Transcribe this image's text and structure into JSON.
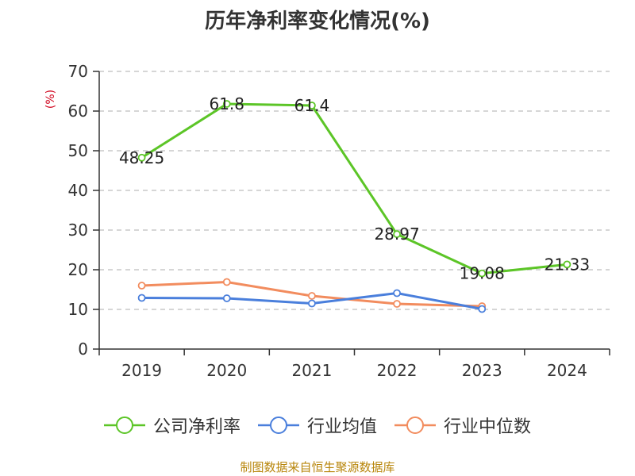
{
  "chart_data": {
    "type": "line",
    "title": "历年净利率变化情况(%)",
    "ylabel": "(%)",
    "xlabel": "",
    "categories": [
      "2019",
      "2020",
      "2021",
      "2022",
      "2023",
      "2024"
    ],
    "ylim": [
      0,
      70
    ],
    "yticks": [
      0,
      10,
      20,
      30,
      40,
      50,
      60,
      70
    ],
    "grid": "horizontal dashed",
    "legend_position": "bottom",
    "series": [
      {
        "name": "公司净利率",
        "color": "#5cc527",
        "values": [
          48.25,
          61.8,
          61.4,
          28.97,
          19.08,
          21.33
        ],
        "labels": [
          "48.25",
          "61.8",
          "61.4",
          "28.97",
          "19.08",
          "21.33"
        ]
      },
      {
        "name": "行业均值",
        "color": "#4a7fdc",
        "values": [
          12.9,
          12.8,
          11.5,
          14.1,
          10.1,
          null
        ]
      },
      {
        "name": "行业中位数",
        "color": "#f28c5e",
        "values": [
          16.0,
          16.9,
          13.4,
          11.4,
          10.8,
          null
        ]
      }
    ]
  },
  "footer": {
    "source": "制图数据来自恒生聚源数据库"
  }
}
